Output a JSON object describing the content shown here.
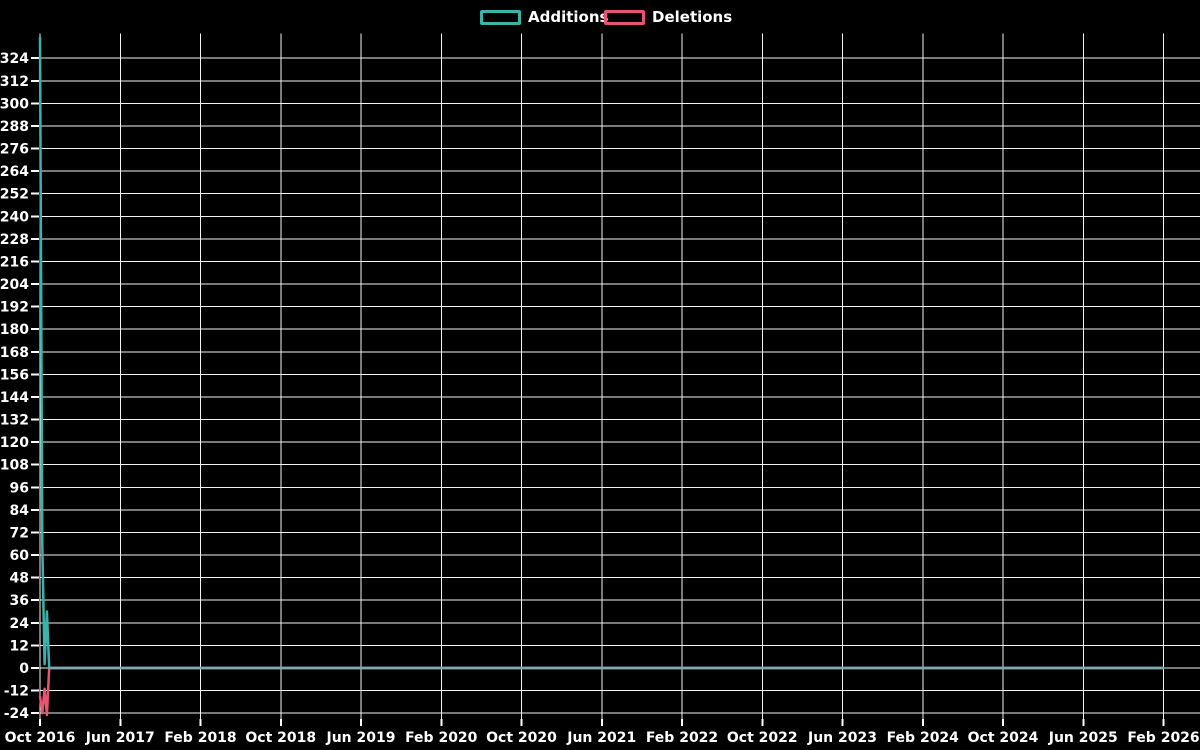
{
  "page": {
    "background": "#000000"
  },
  "colors": {
    "background": "#000000",
    "grid": "#f2f2f2",
    "text": "#ffffff",
    "additions": "#39b3ab",
    "deletions": "#e85570",
    "zero_overlap_line": "#84a7ab"
  },
  "legend": {
    "position": "top-center",
    "items": [
      {
        "label": "Additions",
        "color": "#39b3ab"
      },
      {
        "label": "Deletions",
        "color": "#e85570"
      }
    ]
  },
  "chart_data": {
    "type": "line",
    "title": "",
    "subtitle": "",
    "grid": true,
    "legend_position": "top-center",
    "x_axis": {
      "label": "",
      "resolution": "weekly",
      "start": "Oct 2016",
      "end": "Feb 2026",
      "tick_labels": [
        "Oct 2016",
        "Jun 2017",
        "Feb 2018",
        "Oct 2018",
        "Jun 2019",
        "Feb 2020",
        "Oct 2020",
        "Jun 2021",
        "Feb 2022",
        "Oct 2022",
        "Jun 2023",
        "Feb 2024",
        "Oct 2024",
        "Jun 2025",
        "Feb 2026"
      ]
    },
    "y_axis": {
      "label": "",
      "tick_values": [
        324,
        312,
        300,
        288,
        276,
        264,
        252,
        240,
        228,
        216,
        204,
        192,
        180,
        168,
        156,
        144,
        132,
        120,
        108,
        96,
        84,
        72,
        60,
        48,
        36,
        24,
        12,
        0,
        -12,
        -24
      ],
      "tick_step": 12,
      "range": [
        -27,
        337
      ]
    },
    "weeks_total": 488,
    "series": [
      {
        "name": "Additions",
        "color": "#39b3ab",
        "baseline_value": 0,
        "nonzero_points": [
          {
            "week": 0,
            "value": 335
          },
          {
            "week": 1,
            "value": 65
          },
          {
            "week": 2,
            "value": 2
          },
          {
            "week": 3,
            "value": 30
          }
        ]
      },
      {
        "name": "Deletions",
        "color": "#e85570",
        "baseline_value": 0,
        "nonzero_points": [
          {
            "week": 0,
            "value": -15
          },
          {
            "week": 1,
            "value": -24
          },
          {
            "week": 2,
            "value": -11
          },
          {
            "week": 3,
            "value": -25
          }
        ]
      }
    ]
  }
}
